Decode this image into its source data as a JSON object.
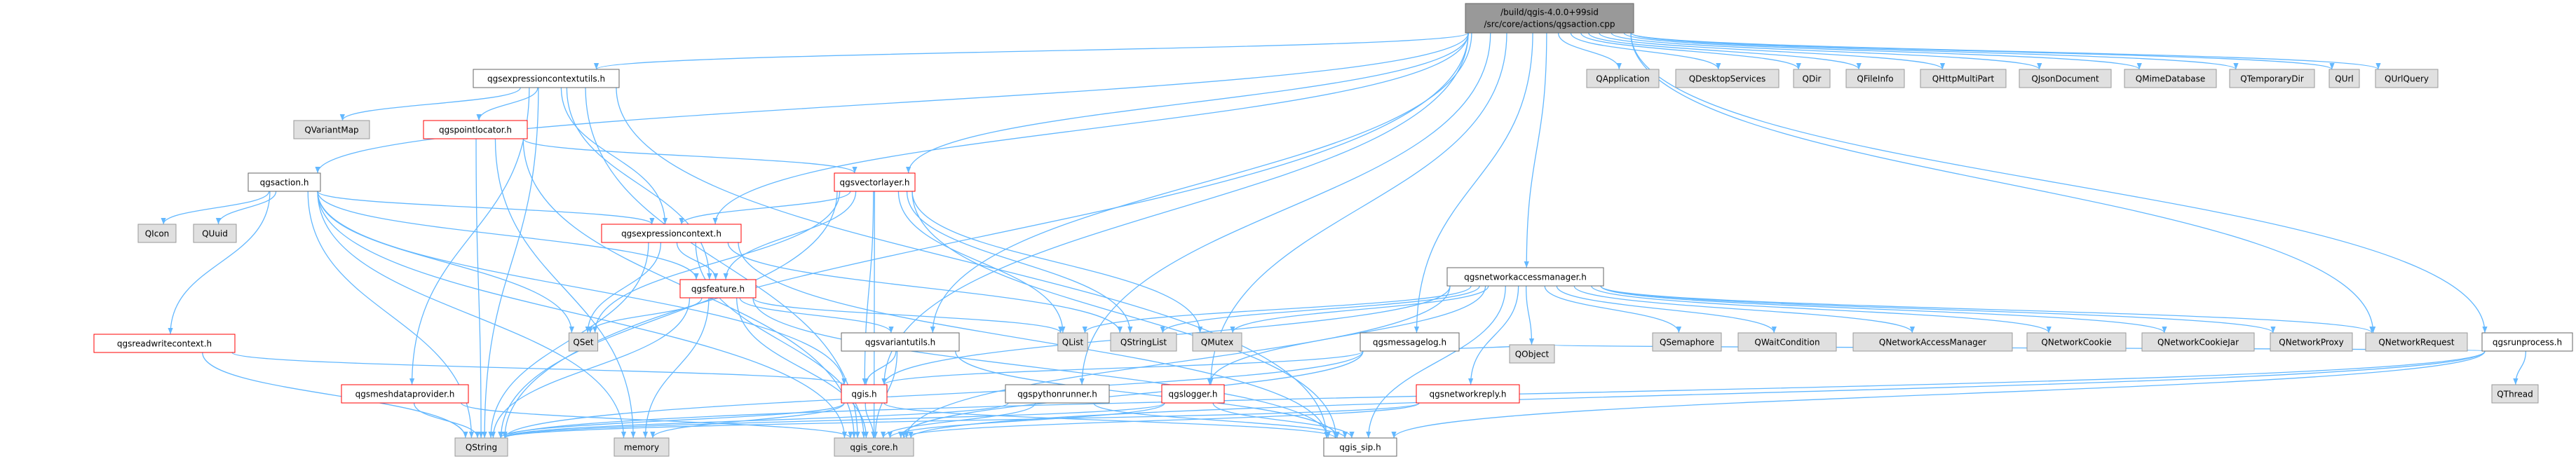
{
  "root": {
    "lines": [
      "/build/qgis-4.0.0+99sid",
      "/src/core/actions/qgsaction.cpp"
    ]
  },
  "nodes": [
    {
      "label": "qgsexpressioncontextutils.h"
    },
    {
      "label": "QApplication"
    },
    {
      "label": "QDesktopServices"
    },
    {
      "label": "QDir"
    },
    {
      "label": "QFileInfo"
    },
    {
      "label": "QHttpMultiPart"
    },
    {
      "label": "QJsonDocument"
    },
    {
      "label": "QMimeDatabase"
    },
    {
      "label": "QTemporaryDir"
    },
    {
      "label": "QUrl"
    },
    {
      "label": "QUrlQuery"
    },
    {
      "label": "QVariantMap"
    },
    {
      "label": "qgspointlocator.h"
    },
    {
      "label": "qgsaction.h"
    },
    {
      "label": "qgsvectorlayer.h"
    },
    {
      "label": "QIcon"
    },
    {
      "label": "QUuid"
    },
    {
      "label": "qgsexpressioncontext.h"
    },
    {
      "label": "qgsfeature.h"
    },
    {
      "label": "qgsnetworkaccessmanager.h"
    },
    {
      "label": "qgsreadwritecontext.h"
    },
    {
      "label": "QSet"
    },
    {
      "label": "qgsvariantutils.h"
    },
    {
      "label": "QList"
    },
    {
      "label": "QStringList"
    },
    {
      "label": "QMutex"
    },
    {
      "label": "qgsmessagelog.h"
    },
    {
      "label": "QObject"
    },
    {
      "label": "QSemaphore"
    },
    {
      "label": "QWaitCondition"
    },
    {
      "label": "QNetworkAccessManager"
    },
    {
      "label": "QNetworkCookie"
    },
    {
      "label": "QNetworkCookieJar"
    },
    {
      "label": "QNetworkProxy"
    },
    {
      "label": "QNetworkRequest"
    },
    {
      "label": "qgsrunprocess.h"
    },
    {
      "label": "qgis.h"
    },
    {
      "label": "qgsmeshdataprovider.h"
    },
    {
      "label": "qgspythonrunner.h"
    },
    {
      "label": "qgslogger.h"
    },
    {
      "label": "qgsnetworkreply.h"
    },
    {
      "label": "QThread"
    },
    {
      "label": "QString"
    },
    {
      "label": "memory"
    },
    {
      "label": "qgis_core.h"
    },
    {
      "label": "qgis_sip.h"
    }
  ]
}
